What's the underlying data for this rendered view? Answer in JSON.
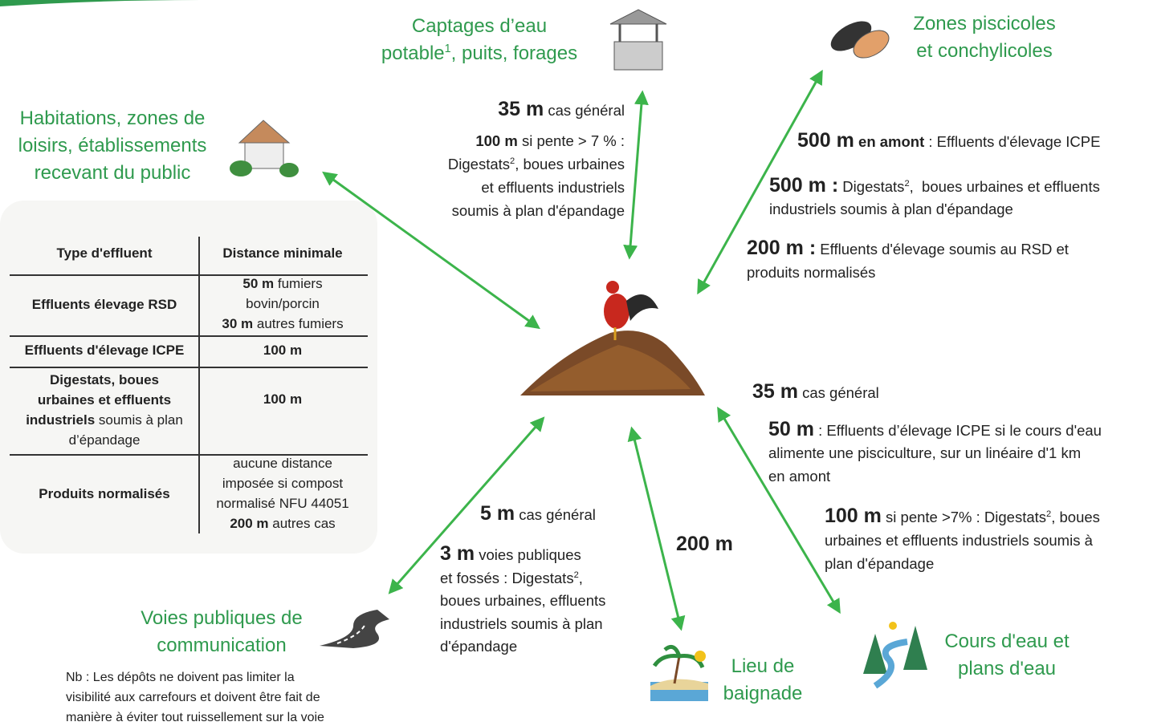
{
  "nodes": [
    {
      "label": [
        [
          {
            "t": "Captages d’eau"
          }
        ],
        [
          {
            "t": "potable"
          },
          {
            "sup": "1"
          },
          {
            "t": ", puits, forages"
          }
        ]
      ]
    },
    {
      "label": [
        [
          {
            "t": "Zones piscicoles"
          }
        ],
        [
          {
            "t": "et conchylicoles"
          }
        ]
      ]
    },
    {
      "label": [
        [
          {
            "t": "Habitations, zones de"
          }
        ],
        [
          {
            "t": "loisirs, établissements"
          }
        ],
        [
          {
            "t": "recevant du public"
          }
        ]
      ]
    },
    {
      "label": [
        [
          {
            "t": "Voies publiques de"
          }
        ],
        [
          {
            "t": "communication"
          }
        ]
      ]
    },
    {
      "label": [
        [
          {
            "t": "Lieu de"
          }
        ],
        [
          {
            "t": "baignade"
          }
        ]
      ]
    },
    {
      "label": [
        [
          {
            "t": "Cours d'eau et"
          }
        ],
        [
          {
            "t": "plans d'eau"
          }
        ]
      ]
    }
  ],
  "notes": [
    {
      "lines": [
        [
          {
            "B": "35 m"
          },
          {
            "t": " cas général"
          }
        ],
        [
          {
            "b": "100 m"
          },
          {
            "t": " si pente > 7 % :"
          }
        ],
        [
          {
            "t": "Digestats"
          },
          {
            "sup": "2"
          },
          {
            "t": ", boues urbaines"
          }
        ],
        [
          {
            "t": "et effluents industriels"
          }
        ],
        [
          {
            "t": "soumis à plan d'épandage"
          }
        ]
      ]
    },
    {
      "lines": [
        [
          {
            "B": "500 m"
          },
          {
            "b": " en amont"
          },
          {
            "t": " : Effluents d'élevage ICPE"
          }
        ],
        [
          {
            "B": "500 m :"
          },
          {
            "t": " Digestats"
          },
          {
            "sup": "2"
          },
          {
            "t": ",  boues urbaines et effluents"
          }
        ],
        [
          {
            "t": "industriels soumis à plan d'épandage"
          }
        ],
        [
          {
            "B": "200 m :"
          },
          {
            "t": " Effluents d'élevage soumis au RSD et"
          }
        ],
        [
          {
            "t": "produits normalisés"
          }
        ]
      ]
    },
    {
      "lines": [
        [
          {
            "B": "35 m"
          },
          {
            "t": " cas général"
          }
        ],
        [
          {
            "B": "50 m"
          },
          {
            "t": " : Effluents d’élevage ICPE si le cours d'eau"
          }
        ],
        [
          {
            "t": "alimente une pisciculture, sur un linéaire d'1 km"
          }
        ],
        [
          {
            "t": "en amont"
          }
        ],
        [
          {
            "B": "100 m"
          },
          {
            "t": " si pente >7% : Digestats"
          },
          {
            "sup": "2"
          },
          {
            "t": ", boues"
          }
        ],
        [
          {
            "t": "urbaines et effluents industriels soumis à"
          }
        ],
        [
          {
            "t": "plan d'épandage"
          }
        ]
      ]
    },
    {
      "lines": [
        [
          {
            "B": "200 m"
          }
        ]
      ]
    },
    {
      "lines": [
        [
          {
            "B": "5 m"
          },
          {
            "t": " cas général"
          }
        ],
        [
          {
            "B": "3 m"
          },
          {
            "t": " voies publiques"
          }
        ],
        [
          {
            "t": "et fossés : Digestats"
          },
          {
            "sup": "2"
          },
          {
            "t": ","
          }
        ],
        [
          {
            "t": "boues urbaines, effluents"
          }
        ],
        [
          {
            "t": "industriels soumis à plan"
          }
        ],
        [
          {
            "t": "d'épandage"
          }
        ]
      ]
    }
  ],
  "table": {
    "header": [
      [
        [
          {
            "b": "Type d'effluent"
          }
        ]
      ],
      [
        [
          {
            "b": "Distance minimale"
          }
        ]
      ]
    ],
    "rows": [
      [
        [
          [
            {
              "b": "Effluents élevage RSD"
            }
          ]
        ],
        [
          [
            {
              "b": "50 m"
            },
            {
              "t": " fumiers"
            }
          ],
          [
            {
              "t": "bovin/porcin"
            }
          ],
          [
            {
              "b": "30 m"
            },
            {
              "t": " autres fumiers"
            }
          ]
        ]
      ],
      [
        [
          [
            {
              "b": "Effluents d'élevage ICPE"
            }
          ]
        ],
        [
          [
            {
              "b": "100 m"
            }
          ]
        ]
      ],
      [
        [
          [
            {
              "b": "Digestats, boues"
            }
          ],
          [
            {
              "b": "urbaines et effluents"
            }
          ],
          [
            {
              "b": "industriels"
            },
            {
              "t": " soumis à plan"
            }
          ],
          [
            {
              "t": "d’épandage"
            }
          ]
        ],
        [
          [
            {
              "b": "100 m"
            }
          ]
        ]
      ],
      [
        [
          [
            {
              "b": "Produits normalisés"
            }
          ]
        ],
        [
          [
            {
              "t": "aucune distance"
            }
          ],
          [
            {
              "t": "imposée si compost"
            }
          ],
          [
            {
              "t": "normalisé NFU 44051"
            }
          ],
          [
            {
              "b": "200 m"
            },
            {
              "t": " autres cas"
            }
          ]
        ]
      ]
    ]
  },
  "footnote": [
    [
      {
        "t": "Nb : Les dépôts ne doivent pas limiter la"
      }
    ],
    [
      {
        "t": "visibilité aux carrefours et doivent être fait de"
      }
    ],
    [
      {
        "t": "manière à éviter tout ruissellement sur la voie"
      }
    ]
  ]
}
